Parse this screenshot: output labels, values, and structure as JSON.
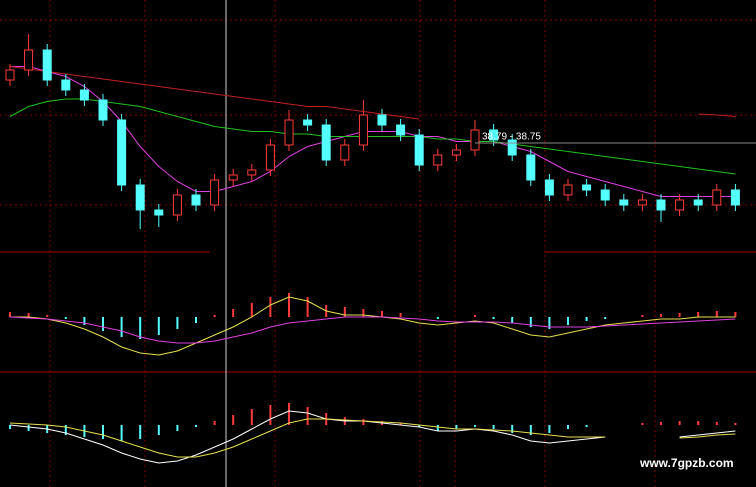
{
  "chart_data": [
    {
      "type": "candlestick",
      "open": [
        39.93,
        40.13,
        40.53,
        39.93,
        39.73,
        39.53,
        39.13,
        37.83,
        37.33,
        37.23,
        37.63,
        37.43,
        37.93,
        38.03,
        38.13,
        38.63,
        39.13,
        39.03,
        38.33,
        38.63,
        39.23,
        39.03,
        38.83,
        38.23,
        38.43,
        38.53,
        38.93,
        38.73,
        38.43,
        37.93,
        37.63,
        37.83,
        37.73,
        37.53,
        37.43,
        37.53,
        37.33,
        37.53,
        37.43,
        37.73
      ],
      "high": [
        40.25,
        40.85,
        40.65,
        40.05,
        39.85,
        39.65,
        39.25,
        37.95,
        37.45,
        37.75,
        37.75,
        38.05,
        38.15,
        38.25,
        38.75,
        39.33,
        39.25,
        39.15,
        38.75,
        39.53,
        39.35,
        39.15,
        38.95,
        38.55,
        38.65,
        39.13,
        39.05,
        38.85,
        38.55,
        38.05,
        37.95,
        37.95,
        37.85,
        37.65,
        37.65,
        37.65,
        37.65,
        37.65,
        37.85,
        37.85
      ],
      "low": [
        39.81,
        40.01,
        39.81,
        39.61,
        39.41,
        39.01,
        37.71,
        36.95,
        36.99,
        37.11,
        37.31,
        37.31,
        37.81,
        37.91,
        38.01,
        38.51,
        38.91,
        38.21,
        38.21,
        38.51,
        38.91,
        38.71,
        38.11,
        38.11,
        38.31,
        38.41,
        38.61,
        38.31,
        37.81,
        37.51,
        37.51,
        37.61,
        37.41,
        37.31,
        37.31,
        37.09,
        37.21,
        37.31,
        37.31,
        37.31
      ],
      "close": [
        40.13,
        40.53,
        39.93,
        39.73,
        39.53,
        39.13,
        37.83,
        37.33,
        37.23,
        37.63,
        37.43,
        37.93,
        38.03,
        38.13,
        38.63,
        39.13,
        39.03,
        38.33,
        38.63,
        39.23,
        39.03,
        38.83,
        38.23,
        38.43,
        38.53,
        38.93,
        38.73,
        38.43,
        37.93,
        37.63,
        37.83,
        37.73,
        37.53,
        37.43,
        37.53,
        37.33,
        37.53,
        37.43,
        37.73,
        37.43
      ],
      "up_color": "#ff3c3c",
      "down_color": "#54ffff",
      "series": [
        {
          "color": "#e040e0",
          "values": [
            40.2,
            40.2,
            40.1,
            40.0,
            39.8,
            39.5,
            39.1,
            38.6,
            38.2,
            37.9,
            37.7,
            37.7,
            37.8,
            37.9,
            38.1,
            38.4,
            38.6,
            38.7,
            38.8,
            38.9,
            38.9,
            38.9,
            38.8,
            38.8,
            38.7,
            38.7,
            38.7,
            38.6,
            38.5,
            38.3,
            38.1,
            38.0,
            37.9,
            37.8,
            37.7,
            37.6,
            37.6,
            37.6,
            37.6,
            37.6
          ]
        },
        {
          "color": "#20c020",
          "values": [
            39.2,
            39.4,
            39.5,
            39.55,
            39.55,
            39.5,
            39.45,
            39.4,
            39.3,
            39.2,
            39.1,
            39.0,
            38.95,
            38.9,
            38.9,
            38.85,
            38.85,
            38.8,
            38.8,
            38.8,
            38.8,
            38.8,
            38.8,
            38.75,
            38.75,
            38.7,
            38.7,
            38.65,
            38.6,
            38.55,
            38.5,
            38.45,
            38.4,
            38.35,
            38.3,
            38.25,
            38.2,
            38.15,
            38.1,
            38.05
          ]
        },
        {
          "color": "#c02020",
          "values": [
            40.2,
            40.15,
            40.1,
            40.05,
            40.0,
            39.95,
            39.9,
            39.85,
            39.8,
            39.75,
            39.7,
            39.65,
            39.6,
            39.55,
            39.5,
            39.45,
            39.4,
            39.4,
            39.35,
            39.3,
            39.25,
            39.2,
            39.15,
            null,
            null,
            null,
            null,
            null,
            null,
            null,
            null,
            null,
            null,
            null,
            null,
            null,
            null,
            39.25,
            39.23,
            39.2
          ]
        }
      ],
      "annotation": {
        "text": "38.79 - 38.75",
        "value": 38.79
      },
      "ylim": [
        36.53,
        41.53
      ]
    },
    {
      "type": "bar",
      "up_color": "#ff3c3c",
      "down_color": "#54ffff",
      "values": [
        0.05,
        0.04,
        0.02,
        -0.02,
        -0.08,
        -0.14,
        -0.2,
        -0.22,
        -0.18,
        -0.12,
        -0.06,
        0.02,
        0.08,
        0.14,
        0.2,
        0.24,
        0.2,
        0.12,
        0.1,
        0.08,
        0.06,
        0.04,
        0.0,
        -0.02,
        0.0,
        0.02,
        -0.02,
        -0.06,
        -0.1,
        -0.12,
        -0.08,
        -0.04,
        -0.02,
        0.0,
        0.02,
        0.03,
        0.04,
        0.05,
        0.06,
        0.05
      ],
      "series": [
        {
          "color": "#e8e050",
          "values": [
            0.0,
            0.0,
            -0.02,
            -0.06,
            -0.12,
            -0.2,
            -0.3,
            -0.36,
            -0.38,
            -0.34,
            -0.26,
            -0.18,
            -0.1,
            0.0,
            0.12,
            0.2,
            0.16,
            0.06,
            0.02,
            0.02,
            0.0,
            -0.02,
            -0.06,
            -0.08,
            -0.06,
            -0.04,
            -0.06,
            -0.12,
            -0.18,
            -0.2,
            -0.16,
            -0.12,
            -0.08,
            -0.06,
            -0.04,
            -0.02,
            -0.02,
            0.0,
            0.0,
            0.0
          ]
        },
        {
          "color": "#e040e0",
          "values": [
            0.0,
            -0.01,
            -0.02,
            -0.04,
            -0.06,
            -0.1,
            -0.14,
            -0.2,
            -0.24,
            -0.26,
            -0.26,
            -0.24,
            -0.2,
            -0.16,
            -0.1,
            -0.06,
            -0.04,
            -0.02,
            0.0,
            0.0,
            0.0,
            -0.01,
            -0.02,
            -0.04,
            -0.05,
            -0.05,
            -0.05,
            -0.06,
            -0.08,
            -0.1,
            -0.1,
            -0.1,
            -0.09,
            -0.08,
            -0.07,
            -0.06,
            -0.05,
            -0.04,
            -0.03,
            -0.02
          ]
        }
      ],
      "ylim": [
        -0.5,
        0.5
      ]
    },
    {
      "type": "bar",
      "up_color": "#ff3c3c",
      "down_color": "#54ffff",
      "values": [
        -0.04,
        -0.06,
        -0.08,
        -0.1,
        -0.12,
        -0.14,
        -0.16,
        -0.14,
        -0.1,
        -0.06,
        -0.02,
        0.04,
        0.1,
        0.16,
        0.2,
        0.22,
        0.18,
        0.12,
        0.08,
        0.06,
        0.04,
        0.02,
        -0.02,
        -0.06,
        -0.04,
        -0.02,
        -0.04,
        -0.08,
        -0.1,
        -0.08,
        -0.04,
        -0.02,
        0.0,
        0.0,
        0.02,
        0.03,
        0.04,
        0.04,
        0.03,
        0.02
      ],
      "series": [
        {
          "color": "#ffffff",
          "values": [
            0.0,
            -0.02,
            -0.04,
            -0.08,
            -0.14,
            -0.2,
            -0.28,
            -0.34,
            -0.38,
            -0.36,
            -0.3,
            -0.22,
            -0.14,
            -0.04,
            0.06,
            0.14,
            0.12,
            0.06,
            0.04,
            0.04,
            0.02,
            0.0,
            -0.02,
            -0.06,
            -0.06,
            -0.04,
            -0.06,
            -0.1,
            -0.16,
            -0.18,
            -0.16,
            -0.14,
            -0.12,
            null,
            null,
            null,
            -0.12,
            -0.1,
            -0.08,
            -0.06
          ]
        },
        {
          "color": "#e8e050",
          "values": [
            0.02,
            0.01,
            0.0,
            -0.02,
            -0.06,
            -0.1,
            -0.16,
            -0.22,
            -0.28,
            -0.32,
            -0.32,
            -0.28,
            -0.22,
            -0.14,
            -0.06,
            0.02,
            0.06,
            0.06,
            0.05,
            0.04,
            0.03,
            0.02,
            0.0,
            -0.02,
            -0.04,
            -0.04,
            -0.05,
            -0.06,
            -0.08,
            -0.1,
            -0.12,
            -0.12,
            -0.12,
            null,
            null,
            null,
            -0.13,
            -0.12,
            -0.1,
            -0.09
          ]
        }
      ],
      "ylim": [
        -0.45,
        0.45
      ]
    }
  ],
  "watermark": "www.7gpzb.com"
}
